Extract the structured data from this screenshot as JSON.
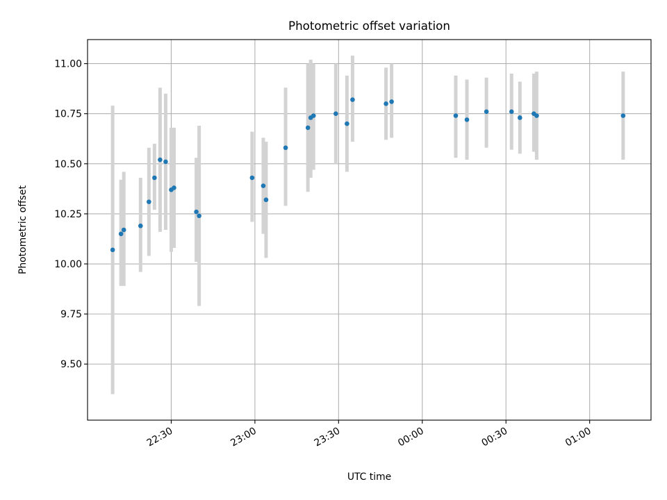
{
  "chart_data": {
    "type": "scatter",
    "title": "Photometric offset variation",
    "xlabel": "UTC time",
    "ylabel": "Photometric offset",
    "grid": true,
    "x_unit": "UTC clock time (HH:MM)",
    "xlim": [
      "22:00",
      "01:22"
    ],
    "ylim": [
      9.22,
      11.12
    ],
    "x_ticks": [
      "22:30",
      "23:00",
      "23:30",
      "00:00",
      "00:30",
      "01:00"
    ],
    "y_ticks": [
      9.5,
      9.75,
      10.0,
      10.25,
      10.5,
      10.75,
      11.0
    ],
    "y_tick_labels": [
      "9.50",
      "9.75",
      "10.00",
      "10.25",
      "10.50",
      "10.75",
      "11.00"
    ],
    "colors": {
      "points": "#1f77b4",
      "error_bars": "#d3d3d3",
      "grid": "#b0b0b0"
    },
    "series": [
      {
        "points": [
          {
            "x": "22:09",
            "y": 10.07,
            "y_low": 9.35,
            "y_high": 10.79
          },
          {
            "x": "22:12",
            "y": 10.15,
            "y_low": 9.89,
            "y_high": 10.42
          },
          {
            "x": "22:13",
            "y": 10.17,
            "y_low": 9.89,
            "y_high": 10.46
          },
          {
            "x": "22:19",
            "y": 10.19,
            "y_low": 9.96,
            "y_high": 10.43
          },
          {
            "x": "22:22",
            "y": 10.31,
            "y_low": 10.04,
            "y_high": 10.58
          },
          {
            "x": "22:24",
            "y": 10.43,
            "y_low": 10.27,
            "y_high": 10.6
          },
          {
            "x": "22:26",
            "y": 10.52,
            "y_low": 10.16,
            "y_high": 10.88
          },
          {
            "x": "22:28",
            "y": 10.51,
            "y_low": 10.17,
            "y_high": 10.85
          },
          {
            "x": "22:30",
            "y": 10.37,
            "y_low": 10.06,
            "y_high": 10.68
          },
          {
            "x": "22:31",
            "y": 10.38,
            "y_low": 10.08,
            "y_high": 10.68
          },
          {
            "x": "22:39",
            "y": 10.26,
            "y_low": 10.01,
            "y_high": 10.53
          },
          {
            "x": "22:40",
            "y": 10.24,
            "y_low": 9.79,
            "y_high": 10.69
          },
          {
            "x": "22:59",
            "y": 10.43,
            "y_low": 10.21,
            "y_high": 10.66
          },
          {
            "x": "23:03",
            "y": 10.39,
            "y_low": 10.15,
            "y_high": 10.63
          },
          {
            "x": "23:04",
            "y": 10.32,
            "y_low": 10.03,
            "y_high": 10.61
          },
          {
            "x": "23:11",
            "y": 10.58,
            "y_low": 10.29,
            "y_high": 10.88
          },
          {
            "x": "23:19",
            "y": 10.68,
            "y_low": 10.36,
            "y_high": 11.0
          },
          {
            "x": "23:20",
            "y": 10.73,
            "y_low": 10.43,
            "y_high": 11.02
          },
          {
            "x": "23:21",
            "y": 10.74,
            "y_low": 10.47,
            "y_high": 11.0
          },
          {
            "x": "23:29",
            "y": 10.75,
            "y_low": 10.5,
            "y_high": 11.0
          },
          {
            "x": "23:33",
            "y": 10.7,
            "y_low": 10.46,
            "y_high": 10.94
          },
          {
            "x": "23:35",
            "y": 10.82,
            "y_low": 10.61,
            "y_high": 11.04
          },
          {
            "x": "23:47",
            "y": 10.8,
            "y_low": 10.62,
            "y_high": 10.98
          },
          {
            "x": "23:49",
            "y": 10.81,
            "y_low": 10.63,
            "y_high": 11.0
          },
          {
            "x": "00:12",
            "y": 10.74,
            "y_low": 10.53,
            "y_high": 10.94
          },
          {
            "x": "00:16",
            "y": 10.72,
            "y_low": 10.52,
            "y_high": 10.92
          },
          {
            "x": "00:23",
            "y": 10.76,
            "y_low": 10.58,
            "y_high": 10.93
          },
          {
            "x": "00:32",
            "y": 10.76,
            "y_low": 10.57,
            "y_high": 10.95
          },
          {
            "x": "00:35",
            "y": 10.73,
            "y_low": 10.55,
            "y_high": 10.91
          },
          {
            "x": "00:40",
            "y": 10.75,
            "y_low": 10.56,
            "y_high": 10.95
          },
          {
            "x": "00:41",
            "y": 10.74,
            "y_low": 10.52,
            "y_high": 10.96
          },
          {
            "x": "01:12",
            "y": 10.74,
            "y_low": 10.52,
            "y_high": 10.96
          }
        ]
      }
    ]
  }
}
